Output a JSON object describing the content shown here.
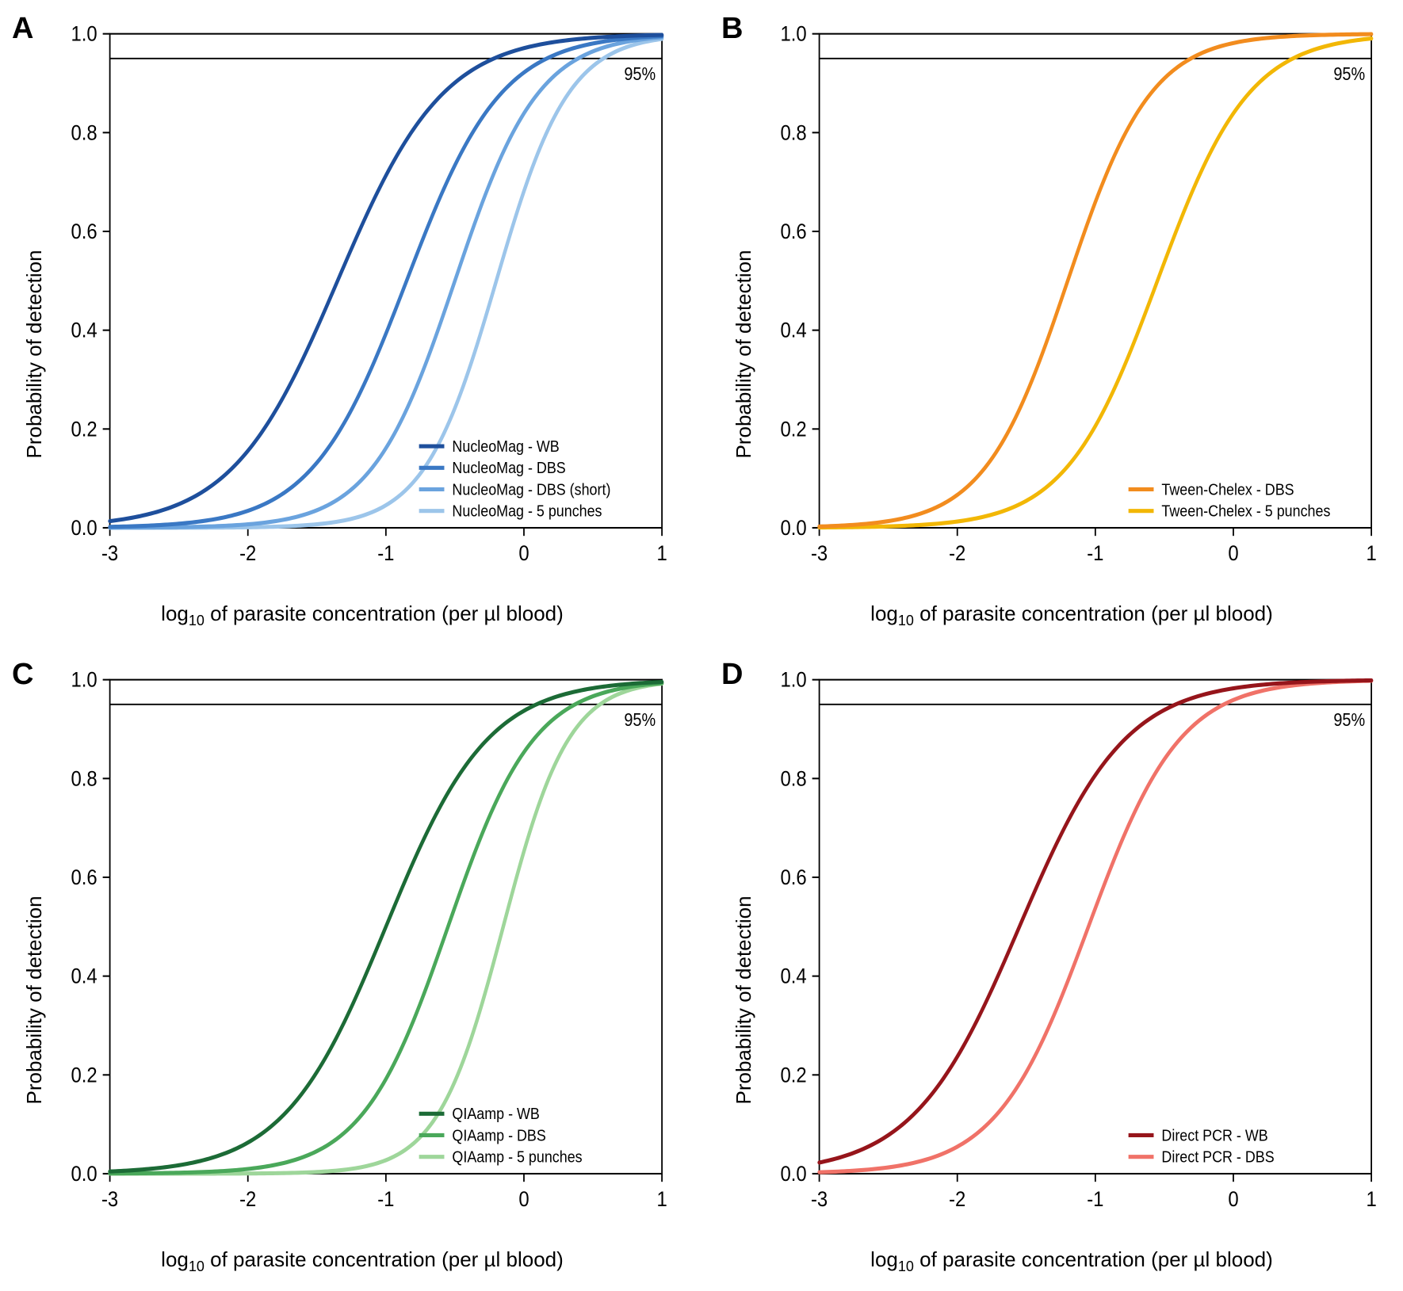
{
  "global": {
    "xlabel_html": "log<sub>10</sub> of parasite concentration (per µl blood)",
    "ylabel": "Probability of detection",
    "xlim": [
      -3,
      1
    ],
    "ylim": [
      0,
      1
    ],
    "xticks": [
      -3,
      -2,
      -1,
      0,
      1
    ],
    "yticks": [
      0.0,
      0.2,
      0.4,
      0.6,
      0.8,
      1.0
    ],
    "ref_line_y": 0.95,
    "ref_line_label": "95%",
    "axis_color": "#000000",
    "line_width": 4.5,
    "tick_fontsize": 24,
    "label_fontsize": 26,
    "panel_label_fontsize": 38,
    "legend_fontsize": 18,
    "legend_line_len": 32,
    "background": "#ffffff"
  },
  "panels": [
    {
      "id": "A",
      "legend_pos": "bottom-right",
      "series": [
        {
          "label": "NucleoMag - WB",
          "color": "#1e4f9c",
          "x0": -1.35,
          "k": 2.6
        },
        {
          "label": "NucleoMag - DBS",
          "color": "#3a78c4",
          "x0": -0.85,
          "k": 2.9
        },
        {
          "label": "NucleoMag - DBS (short)",
          "color": "#6aa3de",
          "x0": -0.5,
          "k": 3.3
        },
        {
          "label": "NucleoMag - 5 punches",
          "color": "#9cc5ea",
          "x0": -0.2,
          "k": 3.8
        }
      ]
    },
    {
      "id": "B",
      "legend_pos": "bottom-right",
      "series": [
        {
          "label": "Tween-Chelex - DBS",
          "color": "#f28c1e",
          "x0": -1.2,
          "k": 3.3
        },
        {
          "label": "Tween-Chelex - 5 punches",
          "color": "#f2b705",
          "x0": -0.55,
          "k": 3.0
        }
      ]
    },
    {
      "id": "C",
      "legend_pos": "bottom-right",
      "series": [
        {
          "label": "QIAamp - WB",
          "color": "#1c6b36",
          "x0": -1.0,
          "k": 2.7
        },
        {
          "label": "QIAamp - DBS",
          "color": "#4aa85a",
          "x0": -0.55,
          "k": 3.2
        },
        {
          "label": "QIAamp - 5 punches",
          "color": "#9ed69a",
          "x0": -0.15,
          "k": 4.2
        }
      ]
    },
    {
      "id": "D",
      "legend_pos": "bottom-right",
      "series": [
        {
          "label": "Direct PCR - WB",
          "color": "#96151b",
          "x0": -1.55,
          "k": 2.6
        },
        {
          "label": "Direct PCR - DBS",
          "color": "#f07268",
          "x0": -1.05,
          "k": 3.0
        }
      ]
    }
  ]
}
